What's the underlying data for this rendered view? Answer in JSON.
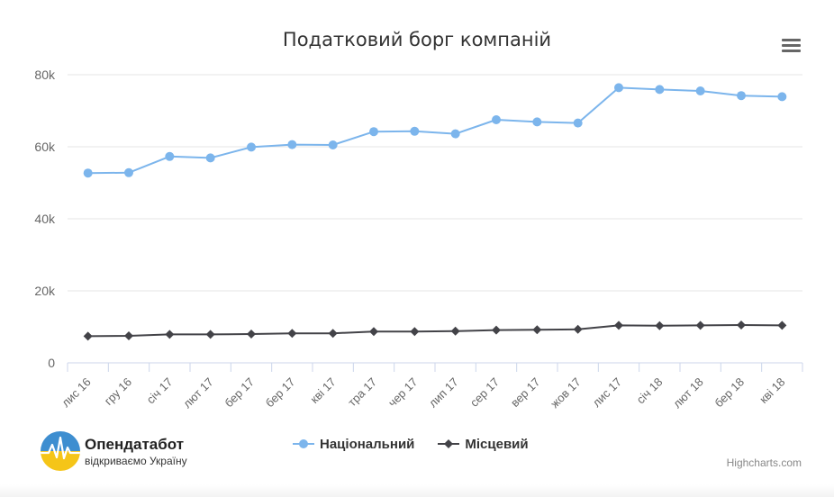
{
  "chart_data": {
    "type": "line",
    "title": "Податковий борг компаній",
    "categories": [
      "лис 16",
      "гру 16",
      "січ 17",
      "лют 17",
      "бер 17",
      "бер 17",
      "кві 17",
      "тра 17",
      "чер 17",
      "лип 17",
      "сер 17",
      "вер 17",
      "жов 17",
      "лис 17",
      "січ 18",
      "лют 18",
      "бер 18",
      "кві 18"
    ],
    "ylim": [
      0,
      80000
    ],
    "yticks": [
      0,
      20000,
      40000,
      60000,
      80000
    ],
    "ytick_labels": [
      "0",
      "20k",
      "40k",
      "60k",
      "80k"
    ],
    "grid": true,
    "legend_position": "bottom-center",
    "series": [
      {
        "name": "Національний",
        "color": "#7cb5ec",
        "marker": "circle",
        "values": [
          52700,
          52800,
          57300,
          56900,
          59900,
          60600,
          60500,
          64200,
          64300,
          63600,
          67500,
          66900,
          66600,
          76400,
          75900,
          75500,
          74200,
          73900
        ]
      },
      {
        "name": "Місцевий",
        "color": "#434348",
        "marker": "diamond",
        "values": [
          7400,
          7500,
          7900,
          7900,
          8000,
          8200,
          8200,
          8700,
          8700,
          8800,
          9100,
          9200,
          9300,
          10400,
          10300,
          10400,
          10500,
          10400
        ]
      }
    ]
  },
  "logo": {
    "name": "Опендатабот",
    "tagline": "відкриваємо Україну"
  },
  "credits": "Highcharts.com",
  "menu_icon": "hamburger-menu-icon"
}
